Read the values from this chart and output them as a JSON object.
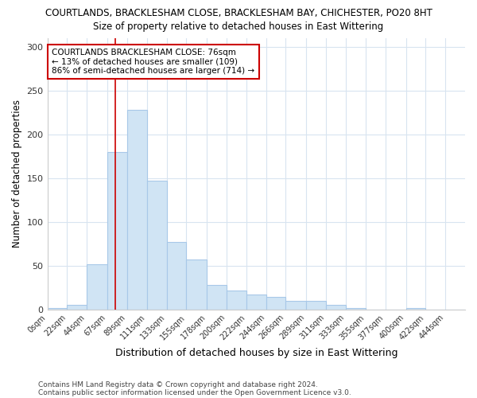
{
  "title": "COURTLANDS, BRACKLESHAM CLOSE, BRACKLESHAM BAY, CHICHESTER, PO20 8HT",
  "subtitle": "Size of property relative to detached houses in East Wittering",
  "xlabel": "Distribution of detached houses by size in East Wittering",
  "ylabel": "Number of detached properties",
  "bar_color": "#d0e4f4",
  "bar_edge_color": "#a8c8e8",
  "bin_labels": [
    "0sqm",
    "22sqm",
    "44sqm",
    "67sqm",
    "89sqm",
    "111sqm",
    "133sqm",
    "155sqm",
    "178sqm",
    "200sqm",
    "222sqm",
    "244sqm",
    "266sqm",
    "289sqm",
    "311sqm",
    "333sqm",
    "355sqm",
    "377sqm",
    "400sqm",
    "422sqm",
    "444sqm"
  ],
  "bin_edges": [
    0,
    22,
    44,
    67,
    89,
    111,
    133,
    155,
    178,
    200,
    222,
    244,
    266,
    289,
    311,
    333,
    355,
    377,
    400,
    422,
    444
  ],
  "counts": [
    2,
    5,
    52,
    180,
    228,
    147,
    77,
    57,
    28,
    22,
    17,
    14,
    10,
    10,
    5,
    2,
    0,
    0,
    2,
    0,
    0
  ],
  "red_line_x": 76,
  "annotation_text": "COURTLANDS BRACKLESHAM CLOSE: 76sqm\n← 13% of detached houses are smaller (109)\n86% of semi-detached houses are larger (714) →",
  "annotation_box_color": "#ffffff",
  "annotation_border_color": "#cc0000",
  "ylim": [
    0,
    310
  ],
  "yticks": [
    0,
    50,
    100,
    150,
    200,
    250,
    300
  ],
  "footnote1": "Contains HM Land Registry data © Crown copyright and database right 2024.",
  "footnote2": "Contains public sector information licensed under the Open Government Licence v3.0.",
  "background_color": "#ffffff",
  "plot_background": "#ffffff",
  "grid_color": "#d8e4f0"
}
